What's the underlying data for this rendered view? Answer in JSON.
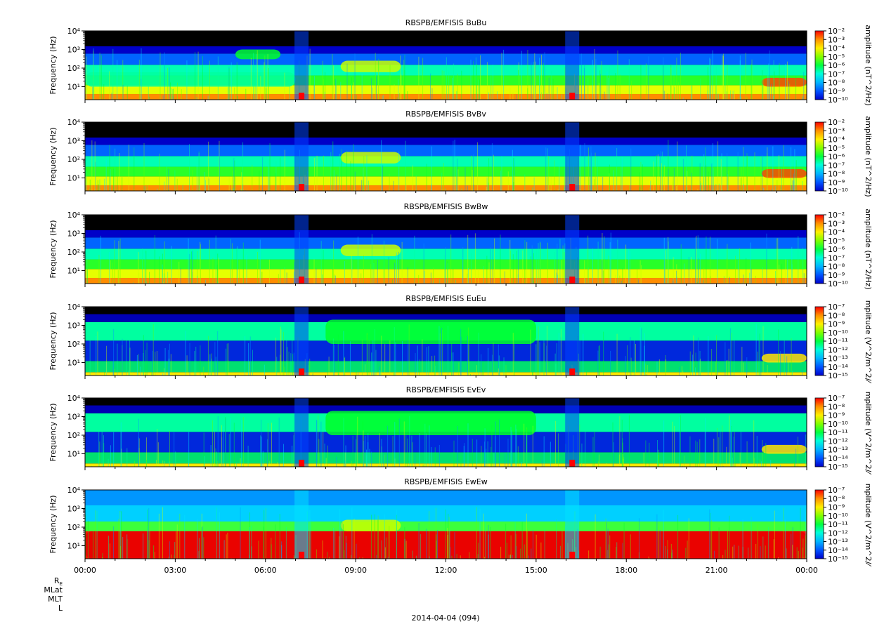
{
  "chart_data": [
    {
      "type": "heatmap",
      "title": "RBSPB/EMFISIS  BuBu",
      "ylabel": "Frequency (Hz)",
      "ylog": true,
      "ylim": [
        2,
        10000
      ],
      "ytick_labels": [
        "10^1",
        "10^2",
        "10^3",
        "10^4"
      ],
      "colorbar_label": "amplitude (nT^2/Hz)",
      "colorbar_range": [
        -10,
        -2
      ],
      "colorbar_tick_labels": [
        "10^-2",
        "10^-3",
        "10^-4",
        "10^-5",
        "10^-6",
        "10^-7",
        "10^-8",
        "10^-9",
        "10^-10"
      ],
      "features": [
        {
          "t": [
            0,
            7
          ],
          "f": [
            10,
            60
          ],
          "level": -7
        },
        {
          "t": [
            5,
            6.5
          ],
          "f": [
            300,
            1000
          ],
          "level": -6
        },
        {
          "t": [
            8.5,
            10.5
          ],
          "f": [
            60,
            250
          ],
          "level": -5
        },
        {
          "t": [
            22.5,
            24
          ],
          "f": [
            10,
            30
          ],
          "level": -3
        }
      ]
    },
    {
      "type": "heatmap",
      "title": "RBSPB/EMFISIS  BvBv",
      "ylabel": "Frequency (Hz)",
      "ylog": true,
      "ylim": [
        2,
        10000
      ],
      "ytick_labels": [
        "10^1",
        "10^2",
        "10^3",
        "10^4"
      ],
      "colorbar_label": "amplitude (nT^2/Hz)",
      "colorbar_range": [
        -10,
        -2
      ],
      "colorbar_tick_labels": [
        "10^-2",
        "10^-3",
        "10^-4",
        "10^-5",
        "10^-6",
        "10^-7",
        "10^-8",
        "10^-9",
        "10^-10"
      ],
      "features": [
        {
          "t": [
            8.5,
            10.5
          ],
          "f": [
            60,
            250
          ],
          "level": -5
        },
        {
          "t": [
            22.5,
            24
          ],
          "f": [
            10,
            30
          ],
          "level": -3
        }
      ]
    },
    {
      "type": "heatmap",
      "title": "RBSPB/EMFISIS  BwBw",
      "ylabel": "Frequency (Hz)",
      "ylog": true,
      "ylim": [
        2,
        10000
      ],
      "ytick_labels": [
        "10^1",
        "10^2",
        "10^3",
        "10^4"
      ],
      "colorbar_label": "amplitude (nT^2/Hz)",
      "colorbar_range": [
        -10,
        -2
      ],
      "colorbar_tick_labels": [
        "10^-2",
        "10^-3",
        "10^-4",
        "10^-5",
        "10^-6",
        "10^-7",
        "10^-8",
        "10^-9",
        "10^-10"
      ],
      "features": [
        {
          "t": [
            8.5,
            10.5
          ],
          "f": [
            60,
            250
          ],
          "level": -5
        }
      ]
    },
    {
      "type": "heatmap",
      "title": "RBSPB/EMFISIS  EuEu",
      "ylabel": "Frequency (Hz)",
      "ylog": true,
      "ylim": [
        2,
        10000
      ],
      "ytick_labels": [
        "10^1",
        "10^2",
        "10^3",
        "10^4"
      ],
      "colorbar_label": "mplitude (V^2/m^2/⁄",
      "colorbar_range": [
        -15,
        -7
      ],
      "colorbar_tick_labels": [
        "10^-7",
        "10^-8",
        "10^-9",
        "10^-10",
        "10^-11",
        "10^-12",
        "10^-13",
        "10^-14",
        "10^-15"
      ],
      "features": [
        {
          "t": [
            8,
            15
          ],
          "f": [
            100,
            2000
          ],
          "level": -11
        },
        {
          "t": [
            22.5,
            24
          ],
          "f": [
            10,
            30
          ],
          "level": -9
        }
      ]
    },
    {
      "type": "heatmap",
      "title": "RBSPB/EMFISIS  EvEv",
      "ylabel": "Frequency (Hz)",
      "ylog": true,
      "ylim": [
        2,
        10000
      ],
      "ytick_labels": [
        "10^1",
        "10^2",
        "10^3",
        "10^4"
      ],
      "colorbar_label": "mplitude (V^2/m^2/⁄",
      "colorbar_range": [
        -15,
        -7
      ],
      "colorbar_tick_labels": [
        "10^-7",
        "10^-8",
        "10^-9",
        "10^-10",
        "10^-11",
        "10^-12",
        "10^-13",
        "10^-14",
        "10^-15"
      ],
      "features": [
        {
          "t": [
            8,
            15
          ],
          "f": [
            100,
            2000
          ],
          "level": -11
        },
        {
          "t": [
            22.5,
            24
          ],
          "f": [
            10,
            30
          ],
          "level": -9
        }
      ]
    },
    {
      "type": "heatmap",
      "title": "RBSPB/EMFISIS  EwEw",
      "ylabel": "Frequency (Hz)",
      "ylog": true,
      "ylim": [
        2,
        10000
      ],
      "ytick_labels": [
        "10^1",
        "10^2",
        "10^3",
        "10^4"
      ],
      "colorbar_label": "mplitude (V^2/m^2/⁄",
      "colorbar_range": [
        -15,
        -7
      ],
      "colorbar_tick_labels": [
        "10^-7",
        "10^-8",
        "10^-9",
        "10^-10",
        "10^-11",
        "10^-12",
        "10^-13",
        "10^-14",
        "10^-15"
      ],
      "features": [
        {
          "t": [
            0,
            24
          ],
          "f": [
            2,
            60
          ],
          "level": -7
        },
        {
          "t": [
            8.5,
            10.5
          ],
          "f": [
            60,
            250
          ],
          "level": -10
        }
      ]
    }
  ],
  "xaxis": {
    "range_hours": [
      0,
      24
    ],
    "tick_labels": [
      "00:00",
      "03:00",
      "06:00",
      "09:00",
      "12:00",
      "15:00",
      "18:00",
      "21:00",
      "00:00"
    ],
    "ephemeris_labels": [
      "R",
      "MLat",
      "MLT",
      "L"
    ],
    "ephemeris_subscript": "E",
    "date_label": "2014-04-04 (094)"
  }
}
